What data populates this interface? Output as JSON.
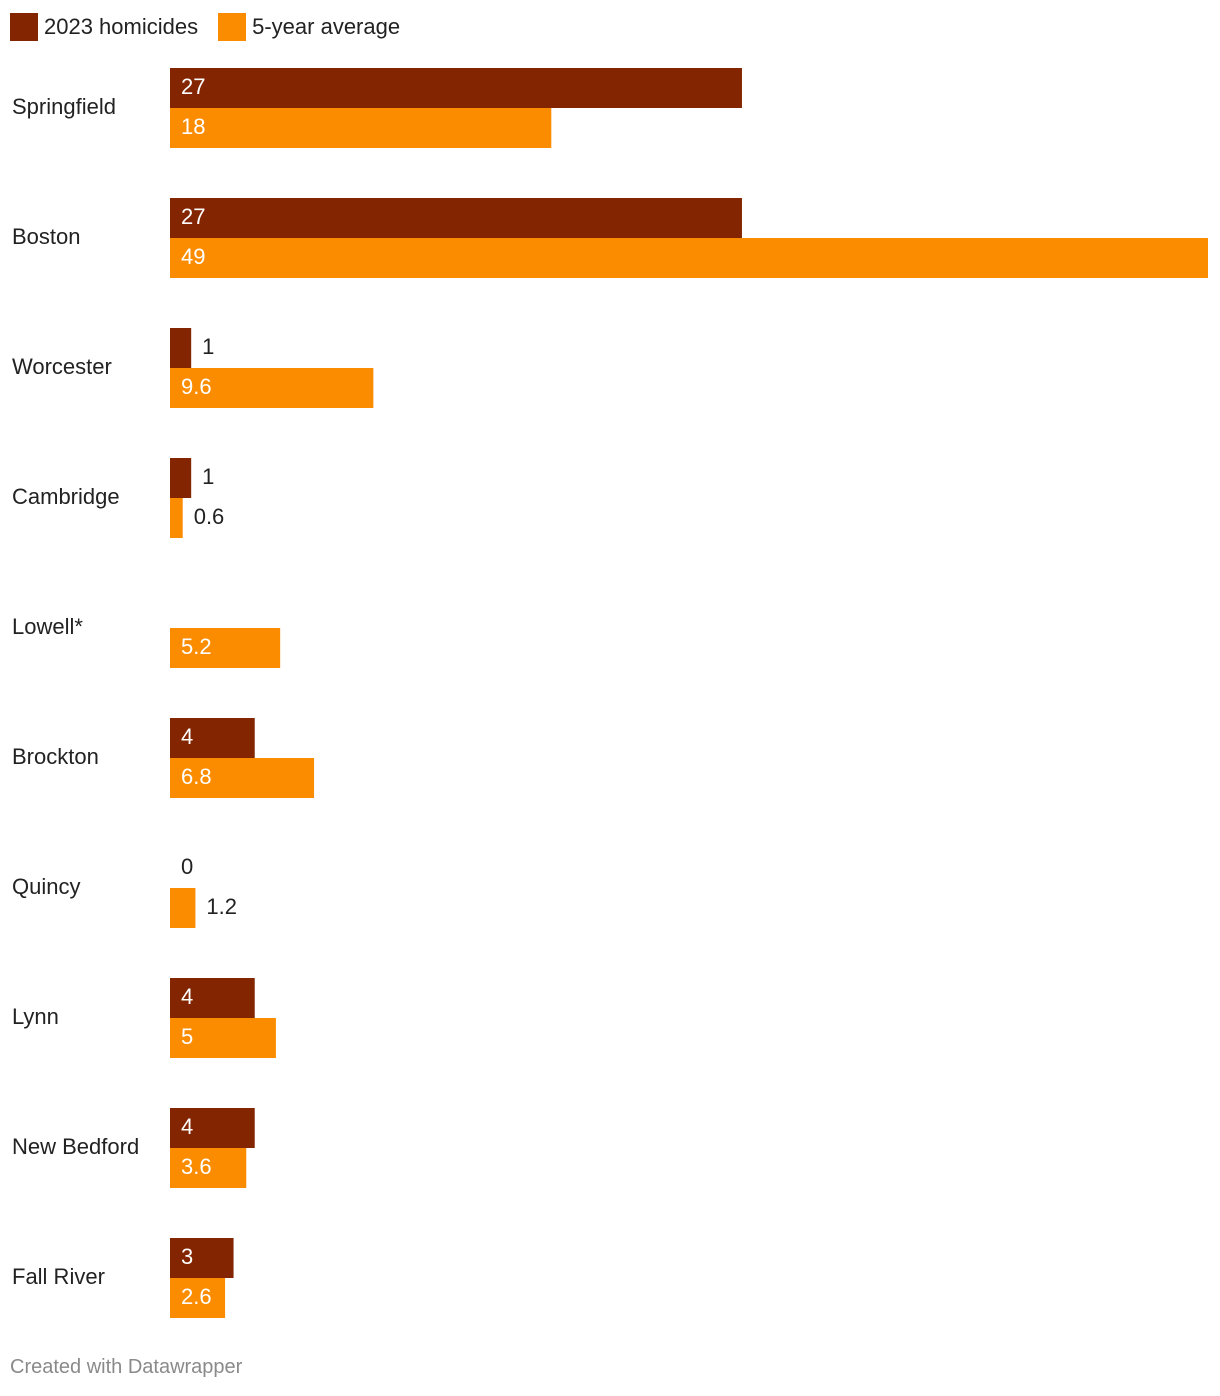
{
  "legend": {
    "items": [
      {
        "label": "2023 homicides",
        "color": "#822500"
      },
      {
        "label": "5-year average",
        "color": "#fb8c00"
      }
    ]
  },
  "footer": {
    "credit": "Created with Datawrapper"
  },
  "chart_data": {
    "type": "bar",
    "orientation": "horizontal",
    "categories": [
      "Springfield",
      "Boston",
      "Worcester",
      "Cambridge",
      "Lowell*",
      "Brockton",
      "Quincy",
      "Lynn",
      "New Bedford",
      "Fall River"
    ],
    "series": [
      {
        "name": "2023 homicides",
        "color": "#822500",
        "values": [
          27,
          27,
          1,
          1,
          null,
          4,
          0,
          4,
          4,
          3
        ],
        "labels": [
          "27",
          "27",
          "1",
          "1",
          "",
          "4",
          "0",
          "4",
          "4",
          "3"
        ]
      },
      {
        "name": "5-year average",
        "color": "#fb8c00",
        "values": [
          18,
          49,
          9.6,
          0.6,
          5.2,
          6.8,
          1.2,
          5,
          3.6,
          2.6
        ],
        "labels": [
          "18",
          "49",
          "9.6",
          "0.6",
          "5.2",
          "6.8",
          "1.2",
          "5",
          "3.6",
          "2.6"
        ]
      }
    ],
    "xlim": [
      0,
      49
    ],
    "grid": false,
    "legend_position": "top-left",
    "title": "",
    "xlabel": "",
    "ylabel": ""
  }
}
